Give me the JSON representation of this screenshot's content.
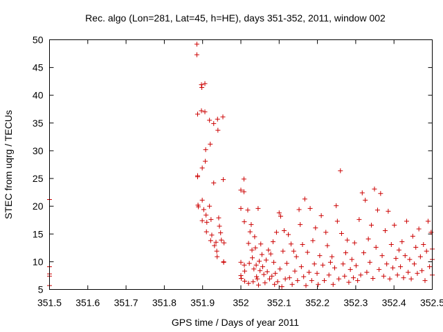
{
  "chart_data": {
    "type": "scatter",
    "title": "Rec. algo (Lon=281, Lat=45, h=HE), days 351-352, 2011, window 002",
    "xlabel": "GPS time / Days of year 2011",
    "ylabel": "STEC from uqrg / TECUs",
    "xlim": [
      351.5,
      352.5
    ],
    "ylim": [
      5,
      50
    ],
    "xticks": [
      "351.5",
      "351.6",
      "351.7",
      "351.8",
      "351.9",
      "352",
      "352.1",
      "352.2",
      "352.3",
      "352.4",
      "352.5"
    ],
    "yticks": [
      "5",
      "10",
      "15",
      "20",
      "25",
      "30",
      "35",
      "40",
      "45",
      "50"
    ],
    "grid": false,
    "marker": "+",
    "color": "#cc0000",
    "series": [
      {
        "points": [
          [
            351.5,
            21.2
          ],
          [
            351.5,
            9.1
          ],
          [
            351.5,
            7.8
          ],
          [
            351.5,
            7.4
          ],
          [
            351.5,
            5.7
          ],
          [
            351.885,
            49.2
          ],
          [
            351.885,
            47.3
          ],
          [
            351.887,
            36.6
          ],
          [
            351.887,
            25.5
          ],
          [
            351.887,
            25.3
          ],
          [
            351.888,
            20.2
          ],
          [
            351.889,
            19.9
          ],
          [
            351.897,
            41.9
          ],
          [
            351.898,
            41.4
          ],
          [
            351.897,
            37.2
          ],
          [
            351.899,
            26.9
          ],
          [
            351.899,
            21.1
          ],
          [
            351.899,
            17.4
          ],
          [
            351.903,
            19.4
          ],
          [
            351.906,
            42.1
          ],
          [
            351.906,
            37.0
          ],
          [
            351.907,
            28.1
          ],
          [
            351.908,
            30.2
          ],
          [
            351.909,
            18.4
          ],
          [
            351.911,
            17.1
          ],
          [
            351.91,
            15.4
          ],
          [
            351.918,
            35.5
          ],
          [
            351.92,
            31.2
          ],
          [
            351.918,
            20.0
          ],
          [
            351.922,
            17.6
          ],
          [
            351.921,
            13.8
          ],
          [
            351.924,
            14.8
          ],
          [
            351.929,
            24.2
          ],
          [
            351.929,
            34.9
          ],
          [
            351.931,
            12.9
          ],
          [
            351.935,
            13.5
          ],
          [
            351.937,
            11.9
          ],
          [
            351.938,
            10.9
          ],
          [
            351.939,
            35.7
          ],
          [
            351.94,
            33.7
          ],
          [
            351.942,
            17.9
          ],
          [
            351.944,
            16.4
          ],
          [
            351.947,
            15.2
          ],
          [
            351.949,
            13.9
          ],
          [
            351.953,
            36.1
          ],
          [
            351.954,
            24.8
          ],
          [
            351.955,
            10.0
          ],
          [
            351.955,
            9.9
          ],
          [
            351.956,
            13.4
          ],
          [
            352.0,
            22.9
          ],
          [
            352.0,
            19.6
          ],
          [
            352.0,
            9.9
          ],
          [
            352.0,
            7.5
          ],
          [
            352.001,
            7.0
          ],
          [
            352.008,
            22.6
          ],
          [
            352.008,
            24.9
          ],
          [
            352.009,
            17.2
          ],
          [
            352.009,
            9.4
          ],
          [
            352.01,
            8.3
          ],
          [
            352.01,
            6.5
          ],
          [
            352.018,
            19.3
          ],
          [
            352.02,
            13.3
          ],
          [
            352.02,
            6.1
          ],
          [
            352.022,
            9.7
          ],
          [
            352.024,
            15.4
          ],
          [
            352.027,
            16.7
          ],
          [
            352.029,
            12.1
          ],
          [
            352.03,
            10.7
          ],
          [
            352.032,
            6.4
          ],
          [
            352.034,
            8.7
          ],
          [
            352.036,
            14.5
          ],
          [
            352.038,
            12.5
          ],
          [
            352.04,
            9.4
          ],
          [
            352.041,
            7.3
          ],
          [
            352.043,
            6.9
          ],
          [
            352.045,
            19.6
          ],
          [
            352.046,
            5.8
          ],
          [
            352.048,
            10.1
          ],
          [
            352.05,
            8.4
          ],
          [
            352.052,
            13.2
          ],
          [
            352.055,
            11.3
          ],
          [
            352.057,
            9.1
          ],
          [
            352.06,
            7.7
          ],
          [
            352.063,
            6.2
          ],
          [
            352.066,
            10.3
          ],
          [
            352.069,
            8.2
          ],
          [
            352.072,
            12.1
          ],
          [
            352.075,
            6.9
          ],
          [
            352.078,
            11.4
          ],
          [
            352.081,
            7.4
          ],
          [
            352.084,
            13.6
          ],
          [
            352.086,
            9.9
          ],
          [
            352.088,
            5.9
          ],
          [
            352.09,
            7.9
          ],
          [
            352.093,
            15.3
          ],
          [
            352.096,
            6.4
          ],
          [
            352.1,
            18.8
          ],
          [
            352.102,
            8.7
          ],
          [
            352.104,
            18.2
          ],
          [
            352.107,
            5.5
          ],
          [
            352.11,
            11.9
          ],
          [
            352.113,
            15.6
          ],
          [
            352.116,
            6.9
          ],
          [
            352.12,
            9.7
          ],
          [
            352.124,
            14.9
          ],
          [
            352.127,
            7.1
          ],
          [
            352.131,
            13.2
          ],
          [
            352.134,
            5.9
          ],
          [
            352.138,
            11.9
          ],
          [
            352.141,
            8.3
          ],
          [
            352.145,
            10.9
          ],
          [
            352.148,
            6.6
          ],
          [
            352.152,
            19.4
          ],
          [
            352.155,
            16.7
          ],
          [
            352.158,
            9.1
          ],
          [
            352.161,
            13.1
          ],
          [
            352.164,
            7.3
          ],
          [
            352.167,
            21.3
          ],
          [
            352.17,
            5.7
          ],
          [
            352.174,
            11.7
          ],
          [
            352.178,
            8.1
          ],
          [
            352.181,
            19.6
          ],
          [
            352.185,
            6.6
          ],
          [
            352.188,
            13.8
          ],
          [
            352.192,
            9.6
          ],
          [
            352.195,
            16.1
          ],
          [
            352.199,
            7.9
          ],
          [
            352.202,
            5.9
          ],
          [
            352.206,
            11.1
          ],
          [
            352.21,
            18.3
          ],
          [
            352.214,
            9.4
          ],
          [
            352.218,
            6.6
          ],
          [
            352.222,
            15.3
          ],
          [
            352.226,
            12.9
          ],
          [
            352.23,
            7.6
          ],
          [
            352.234,
            9.9
          ],
          [
            352.238,
            10.9
          ],
          [
            352.241,
            5.9
          ],
          [
            352.245,
            8.9
          ],
          [
            352.249,
            20.1
          ],
          [
            352.252,
            17.3
          ],
          [
            352.256,
            6.9
          ],
          [
            352.26,
            26.4
          ],
          [
            352.263,
            15.1
          ],
          [
            352.267,
            9.6
          ],
          [
            352.271,
            7.4
          ],
          [
            352.274,
            11.6
          ],
          [
            352.278,
            13.9
          ],
          [
            352.282,
            6.3
          ],
          [
            352.286,
            8.6
          ],
          [
            352.29,
            10.4
          ],
          [
            352.294,
            7.1
          ],
          [
            352.297,
            13.4
          ],
          [
            352.301,
            9.3
          ],
          [
            352.305,
            6.6
          ],
          [
            352.309,
            17.6
          ],
          [
            352.313,
            7.6
          ],
          [
            352.317,
            22.4
          ],
          [
            352.321,
            11.6
          ],
          [
            352.325,
            21.1
          ],
          [
            352.329,
            8.1
          ],
          [
            352.333,
            14.1
          ],
          [
            352.337,
            9.9
          ],
          [
            352.341,
            16.6
          ],
          [
            352.345,
            7.0
          ],
          [
            352.349,
            23.1
          ],
          [
            352.353,
            12.6
          ],
          [
            352.357,
            19.3
          ],
          [
            352.361,
            8.6
          ],
          [
            352.365,
            22.3
          ],
          [
            352.369,
            11.1
          ],
          [
            352.373,
            7.4
          ],
          [
            352.377,
            15.6
          ],
          [
            352.381,
            9.6
          ],
          [
            352.385,
            19.1
          ],
          [
            352.389,
            6.9
          ],
          [
            352.393,
            13.1
          ],
          [
            352.397,
            8.9
          ],
          [
            352.401,
            16.6
          ],
          [
            352.405,
            10.6
          ],
          [
            352.409,
            7.6
          ],
          [
            352.413,
            12.1
          ],
          [
            352.417,
            9.1
          ],
          [
            352.421,
            13.6
          ],
          [
            352.425,
            7.1
          ],
          [
            352.429,
            11.1
          ],
          [
            352.433,
            17.3
          ],
          [
            352.437,
            8.1
          ],
          [
            352.441,
            10.4
          ],
          [
            352.445,
            6.9
          ],
          [
            352.449,
            14.6
          ],
          [
            352.453,
            9.6
          ],
          [
            352.457,
            12.6
          ],
          [
            352.461,
            7.9
          ],
          [
            352.465,
            15.9
          ],
          [
            352.469,
            10.9
          ],
          [
            352.473,
            8.4
          ],
          [
            352.477,
            13.1
          ],
          [
            352.481,
            6.6
          ],
          [
            352.485,
            11.9
          ],
          [
            352.489,
            17.3
          ],
          [
            352.493,
            9.1
          ],
          [
            352.497,
            15.3
          ],
          [
            352.5,
            12.3
          ],
          [
            352.5,
            10.4
          ],
          [
            352.5,
            7.6
          ]
        ]
      }
    ]
  }
}
